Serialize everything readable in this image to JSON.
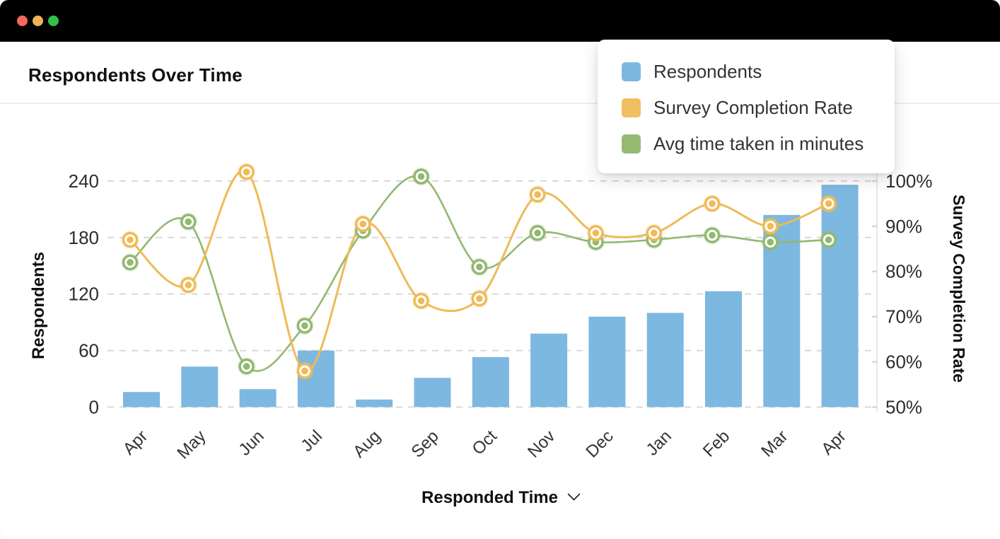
{
  "window": {
    "titlebar_buttons": [
      {
        "name": "close",
        "color": "#f2685c"
      },
      {
        "name": "minimize",
        "color": "#f0b354"
      },
      {
        "name": "zoom",
        "color": "#2fc14a"
      }
    ]
  },
  "header": {
    "title": "Respondents Over Time"
  },
  "legend": {
    "items": [
      {
        "label": "Respondents",
        "color": "#7db8e0"
      },
      {
        "label": "Survey Completion Rate",
        "color": "#efbf62"
      },
      {
        "label": "Avg time taken in minutes",
        "color": "#96ba74"
      }
    ]
  },
  "footer": {
    "label": "Responded Time",
    "icon": "chevron-down-icon"
  },
  "chart_data": {
    "type": "bar",
    "subtype": "combo-bar-line",
    "title": "Respondents Over Time",
    "categories": [
      "Apr",
      "May",
      "Jun",
      "Jul",
      "Aug",
      "Sep",
      "Oct",
      "Nov",
      "Dec",
      "Jan",
      "Feb",
      "Mar",
      "Apr"
    ],
    "series": [
      {
        "name": "Respondents",
        "type": "bar",
        "axis": "left",
        "color": "#7db8e0",
        "values": [
          16,
          43,
          19,
          60,
          8,
          31,
          53,
          78,
          96,
          100,
          123,
          204,
          236
        ]
      },
      {
        "name": "Survey Completion Rate",
        "type": "line",
        "axis": "right",
        "color": "#eebb58",
        "values_percent": [
          87,
          77,
          102,
          58,
          90.5,
          73.5,
          74,
          97,
          88.5,
          88.5,
          95,
          90,
          95
        ]
      },
      {
        "name": "Avg time taken in minutes",
        "type": "line",
        "axis": "right",
        "color": "#92b871",
        "values_percent": [
          82,
          91,
          59,
          68,
          89,
          101,
          81,
          88.5,
          86.5,
          87,
          88,
          86.5,
          87
        ]
      }
    ],
    "left_axis": {
      "title": "Respondents",
      "ticks": [
        0,
        60,
        120,
        180,
        240
      ],
      "range": [
        0,
        240
      ]
    },
    "right_axis": {
      "title": "Survey Completion Rate",
      "tick_labels": [
        "50%",
        "60%",
        "70%",
        "80%",
        "90%",
        "100%"
      ],
      "tick_values": [
        50,
        60,
        70,
        80,
        90,
        100
      ],
      "range": [
        50,
        100
      ]
    },
    "x_axis": {
      "title": "Responded Time",
      "label_rotation_deg": -45
    },
    "grid": "horizontal dashed",
    "grid_color": "#d8d8d8",
    "legend_position": "top-right floating card"
  }
}
